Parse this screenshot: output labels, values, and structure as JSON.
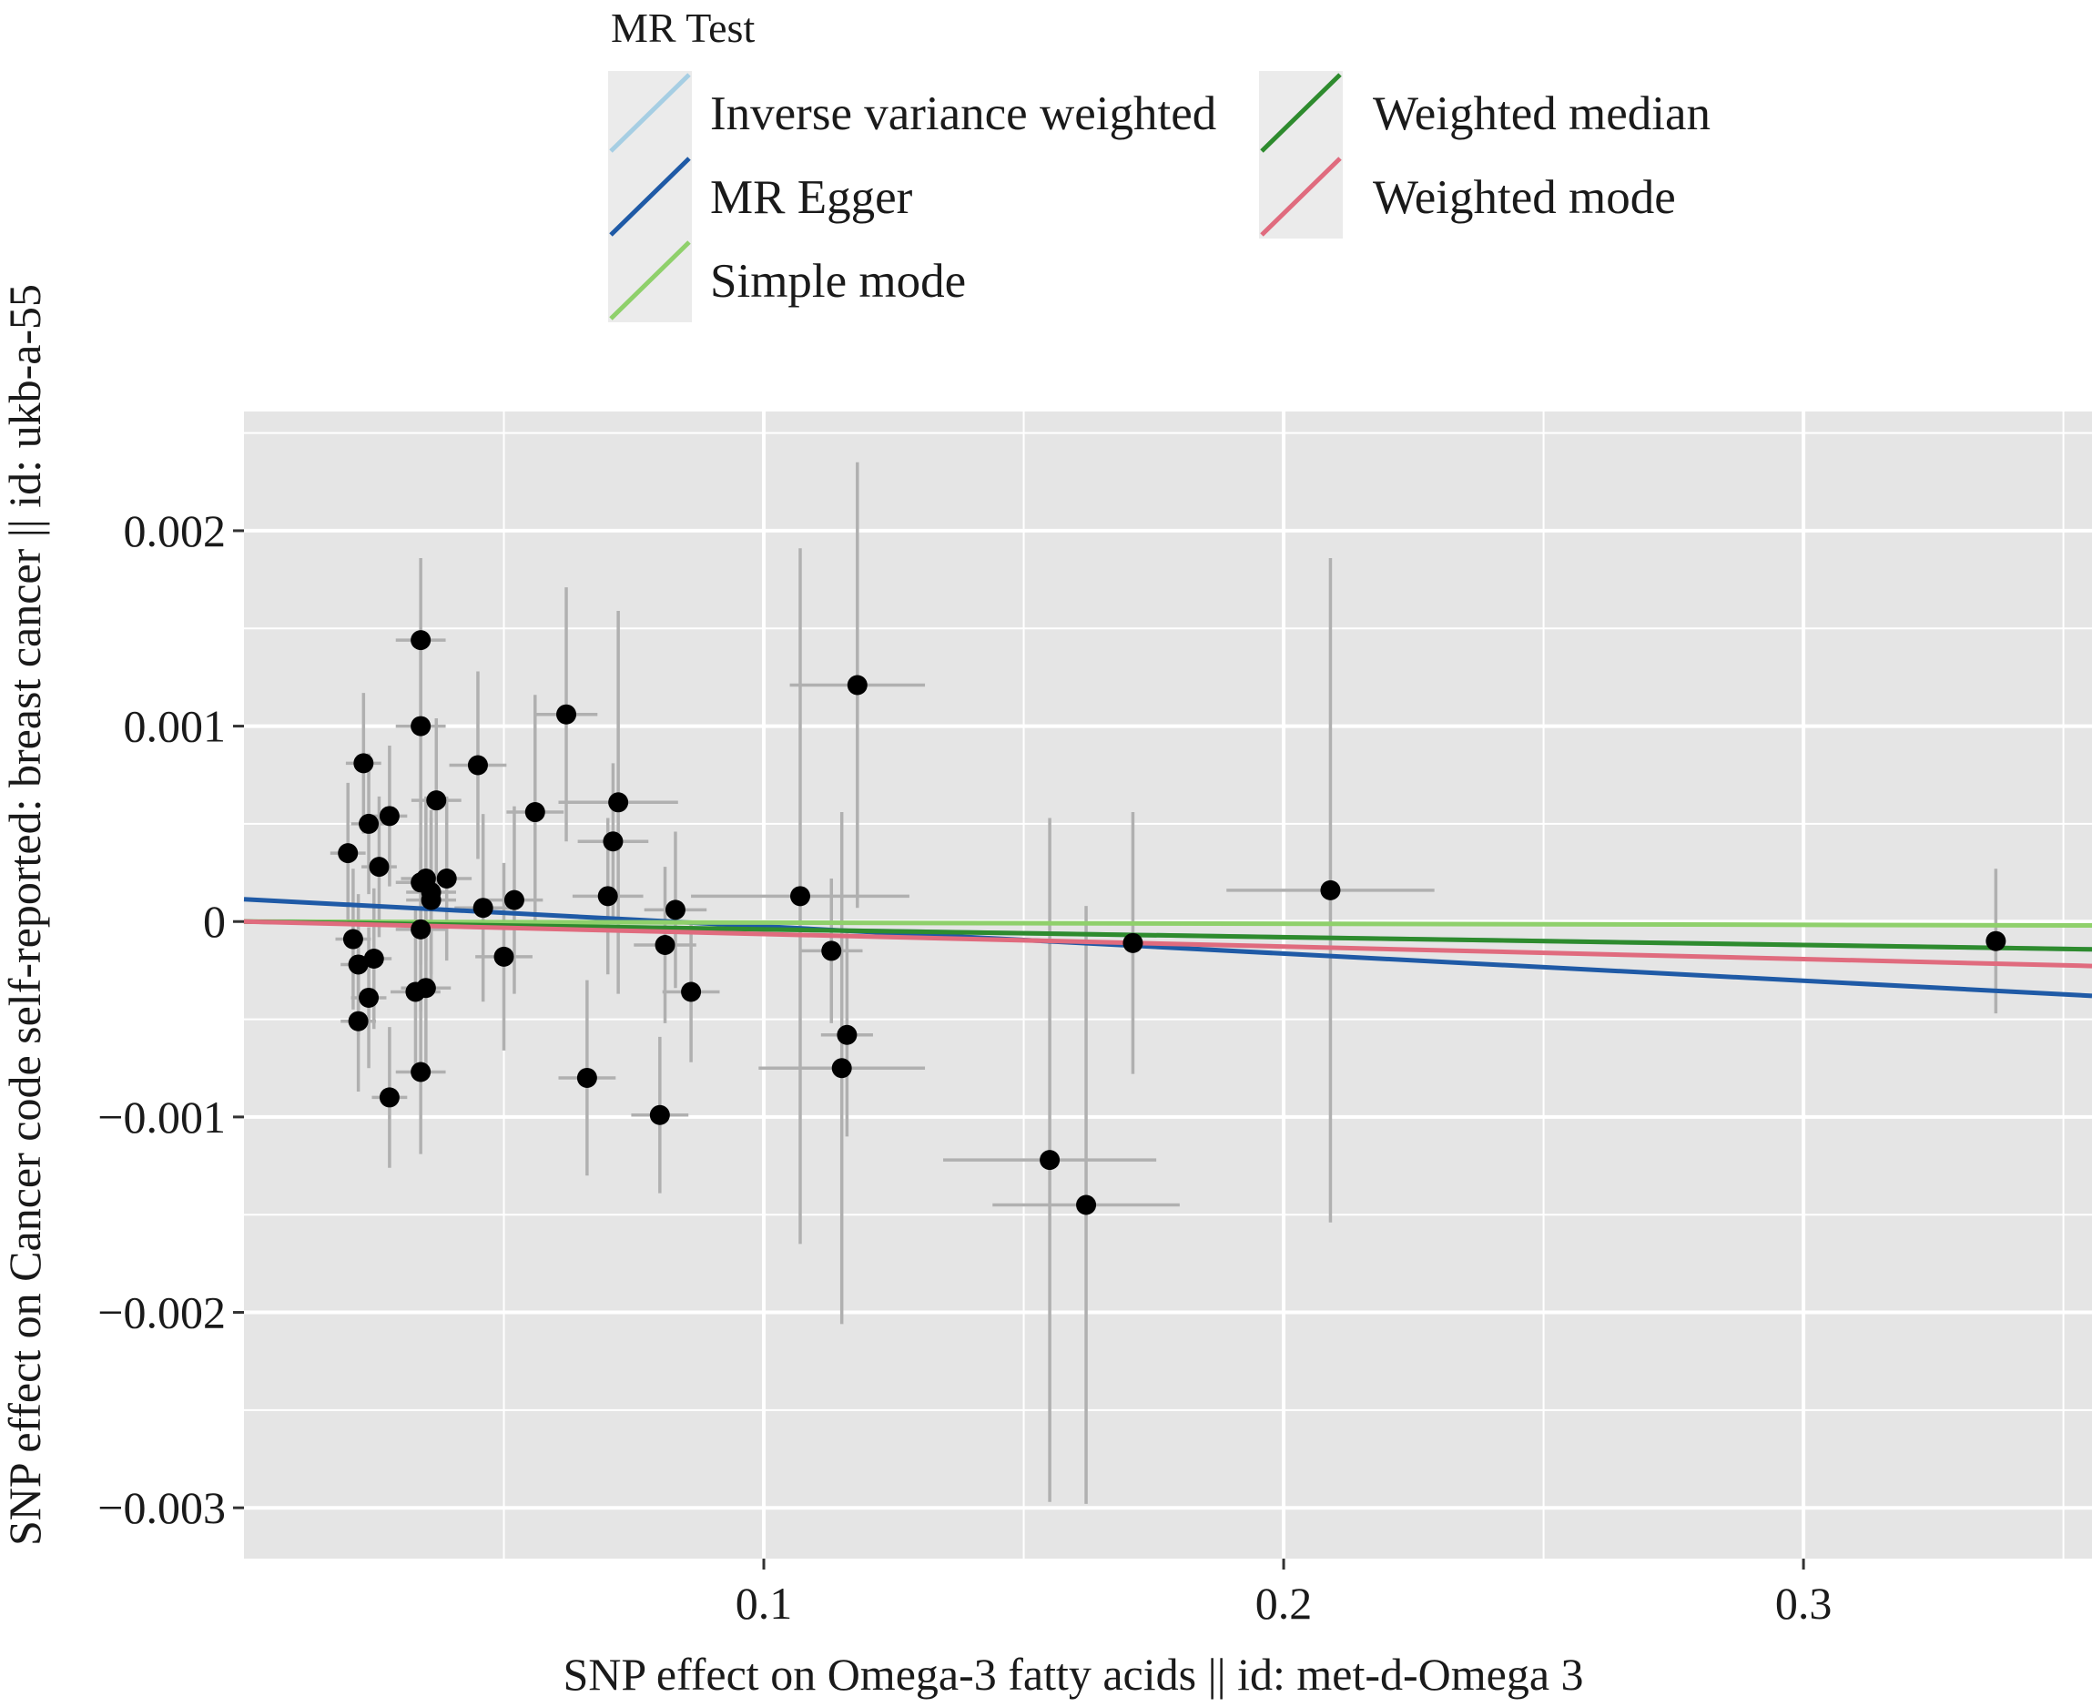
{
  "chart_data": {
    "type": "scatter",
    "xlabel": "SNP effect on Omega-3 fatty acids || id: met-d-Omega 3",
    "ylabel": "SNP effect on Cancer code self-reported: breast cancer || id: ukb-a-55",
    "xlim": [
      0.0,
      0.3555
    ],
    "ylim": [
      -0.00326,
      0.00261
    ],
    "x_ticks": [
      0.1,
      0.2,
      0.3
    ],
    "x_tick_labels": [
      "0.1",
      "0.2",
      "0.3"
    ],
    "y_ticks": [
      0.002,
      0.001,
      0.0,
      -0.001,
      -0.002,
      -0.003
    ],
    "y_tick_labels": [
      "0.002",
      "0.001",
      "0",
      "−0.001",
      "−0.002",
      "−0.003"
    ],
    "grid": true,
    "panel_background": "#e5e5e5",
    "legend": {
      "title": "MR Test",
      "placement": "top",
      "entries": [
        {
          "name": "Inverse variance weighted",
          "color": "#a6cee3"
        },
        {
          "name": "MR Egger",
          "color": "#1f5aa6"
        },
        {
          "name": "Simple mode",
          "color": "#8fd06b"
        },
        {
          "name": "Weighted median",
          "color": "#2e8b2e"
        },
        {
          "name": "Weighted mode",
          "color": "#e06b7e"
        }
      ]
    },
    "lines": [
      {
        "name": "Inverse variance weighted",
        "color": "#8fbac9",
        "intercept": 0.0,
        "slope": -0.0004
      },
      {
        "name": "MR Egger",
        "color": "#1f5aa6",
        "intercept": 0.000114,
        "slope": -0.00139
      },
      {
        "name": "Simple mode",
        "color": "#8fd06b",
        "intercept": 0.0,
        "slope": -5.6e-05
      },
      {
        "name": "Weighted median",
        "color": "#2e8b2e",
        "intercept": 0.0,
        "slope": -0.0004
      },
      {
        "name": "Weighted mode",
        "color": "#e06b7e",
        "intercept": 0.0,
        "slope": -0.00064
      }
    ],
    "points": [
      {
        "x": 0.02,
        "y": 0.00035,
        "xerr": 0.0034,
        "yerr": 0.00036
      },
      {
        "x": 0.021,
        "y": -9e-05,
        "xerr": 0.0034,
        "yerr": 0.00036
      },
      {
        "x": 0.022,
        "y": -0.00022,
        "xerr": 0.0034,
        "yerr": 0.00036
      },
      {
        "x": 0.022,
        "y": -0.00051,
        "xerr": 0.0034,
        "yerr": 0.00036
      },
      {
        "x": 0.023,
        "y": 0.00081,
        "xerr": 0.0034,
        "yerr": 0.00036
      },
      {
        "x": 0.024,
        "y": -0.00039,
        "xerr": 0.0034,
        "yerr": 0.00036
      },
      {
        "x": 0.024,
        "y": 0.0005,
        "xerr": 0.0034,
        "yerr": 0.00036
      },
      {
        "x": 0.025,
        "y": -0.00019,
        "xerr": 0.0034,
        "yerr": 0.00036
      },
      {
        "x": 0.026,
        "y": 0.00028,
        "xerr": 0.0034,
        "yerr": 0.00036
      },
      {
        "x": 0.028,
        "y": 0.00054,
        "xerr": 0.0034,
        "yerr": 0.00036
      },
      {
        "x": 0.028,
        "y": -0.0009,
        "xerr": 0.0034,
        "yerr": 0.00036
      },
      {
        "x": 0.034,
        "y": 0.00144,
        "xerr": 0.0048,
        "yerr": 0.00042
      },
      {
        "x": 0.034,
        "y": 0.001,
        "xerr": 0.0048,
        "yerr": 0.00042
      },
      {
        "x": 0.034,
        "y": 0.0002,
        "xerr": 0.0048,
        "yerr": 0.00042
      },
      {
        "x": 0.034,
        "y": -4e-05,
        "xerr": 0.0048,
        "yerr": 0.00042
      },
      {
        "x": 0.034,
        "y": -0.00077,
        "xerr": 0.0048,
        "yerr": 0.00042
      },
      {
        "x": 0.033,
        "y": -0.00036,
        "xerr": 0.0048,
        "yerr": 0.00042
      },
      {
        "x": 0.035,
        "y": -0.00034,
        "xerr": 0.0048,
        "yerr": 0.00042
      },
      {
        "x": 0.035,
        "y": 0.00022,
        "xerr": 0.0048,
        "yerr": 0.00042
      },
      {
        "x": 0.036,
        "y": 0.00015,
        "xerr": 0.0048,
        "yerr": 0.00042
      },
      {
        "x": 0.036,
        "y": 0.00011,
        "xerr": 0.0048,
        "yerr": 0.00042
      },
      {
        "x": 0.037,
        "y": 0.00062,
        "xerr": 0.0048,
        "yerr": 0.00042
      },
      {
        "x": 0.039,
        "y": 0.00022,
        "xerr": 0.0048,
        "yerr": 0.00042
      },
      {
        "x": 0.045,
        "y": 0.0008,
        "xerr": 0.0055,
        "yerr": 0.00048
      },
      {
        "x": 0.046,
        "y": 7e-05,
        "xerr": 0.0055,
        "yerr": 0.00048
      },
      {
        "x": 0.05,
        "y": -0.00018,
        "xerr": 0.0055,
        "yerr": 0.00048
      },
      {
        "x": 0.052,
        "y": 0.00011,
        "xerr": 0.0055,
        "yerr": 0.00048
      },
      {
        "x": 0.056,
        "y": 0.00056,
        "xerr": 0.0055,
        "yerr": 0.0006
      },
      {
        "x": 0.062,
        "y": 0.00106,
        "xerr": 0.006,
        "yerr": 0.00065
      },
      {
        "x": 0.066,
        "y": -0.0008,
        "xerr": 0.0055,
        "yerr": 0.0005
      },
      {
        "x": 0.07,
        "y": 0.00013,
        "xerr": 0.0068,
        "yerr": 0.0004
      },
      {
        "x": 0.071,
        "y": 0.00041,
        "xerr": 0.0068,
        "yerr": 0.0004
      },
      {
        "x": 0.072,
        "y": 0.00061,
        "xerr": 0.0115,
        "yerr": 0.00098
      },
      {
        "x": 0.08,
        "y": -0.00099,
        "xerr": 0.0055,
        "yerr": 0.0004
      },
      {
        "x": 0.081,
        "y": -0.00012,
        "xerr": 0.006,
        "yerr": 0.0004
      },
      {
        "x": 0.083,
        "y": 6e-05,
        "xerr": 0.006,
        "yerr": 0.0004
      },
      {
        "x": 0.086,
        "y": -0.00036,
        "xerr": 0.0055,
        "yerr": 0.00036
      },
      {
        "x": 0.107,
        "y": 0.00013,
        "xerr": 0.021,
        "yerr": 0.00178
      },
      {
        "x": 0.113,
        "y": -0.00015,
        "xerr": 0.006,
        "yerr": 0.00037
      },
      {
        "x": 0.115,
        "y": -0.00075,
        "xerr": 0.016,
        "yerr": 0.00131
      },
      {
        "x": 0.116,
        "y": -0.00058,
        "xerr": 0.005,
        "yerr": 0.00052
      },
      {
        "x": 0.118,
        "y": 0.00121,
        "xerr": 0.013,
        "yerr": 0.00114
      },
      {
        "x": 0.155,
        "y": -0.00122,
        "xerr": 0.0205,
        "yerr": 0.00175
      },
      {
        "x": 0.162,
        "y": -0.00145,
        "xerr": 0.018,
        "yerr": 0.00153
      },
      {
        "x": 0.171,
        "y": -0.00011,
        "xerr": 0.0,
        "yerr": 0.00067
      },
      {
        "x": 0.209,
        "y": 0.00016,
        "xerr": 0.02,
        "yerr": 0.0017
      },
      {
        "x": 0.337,
        "y": -0.0001,
        "xerr": 0.0,
        "yerr": 0.00037
      }
    ]
  }
}
